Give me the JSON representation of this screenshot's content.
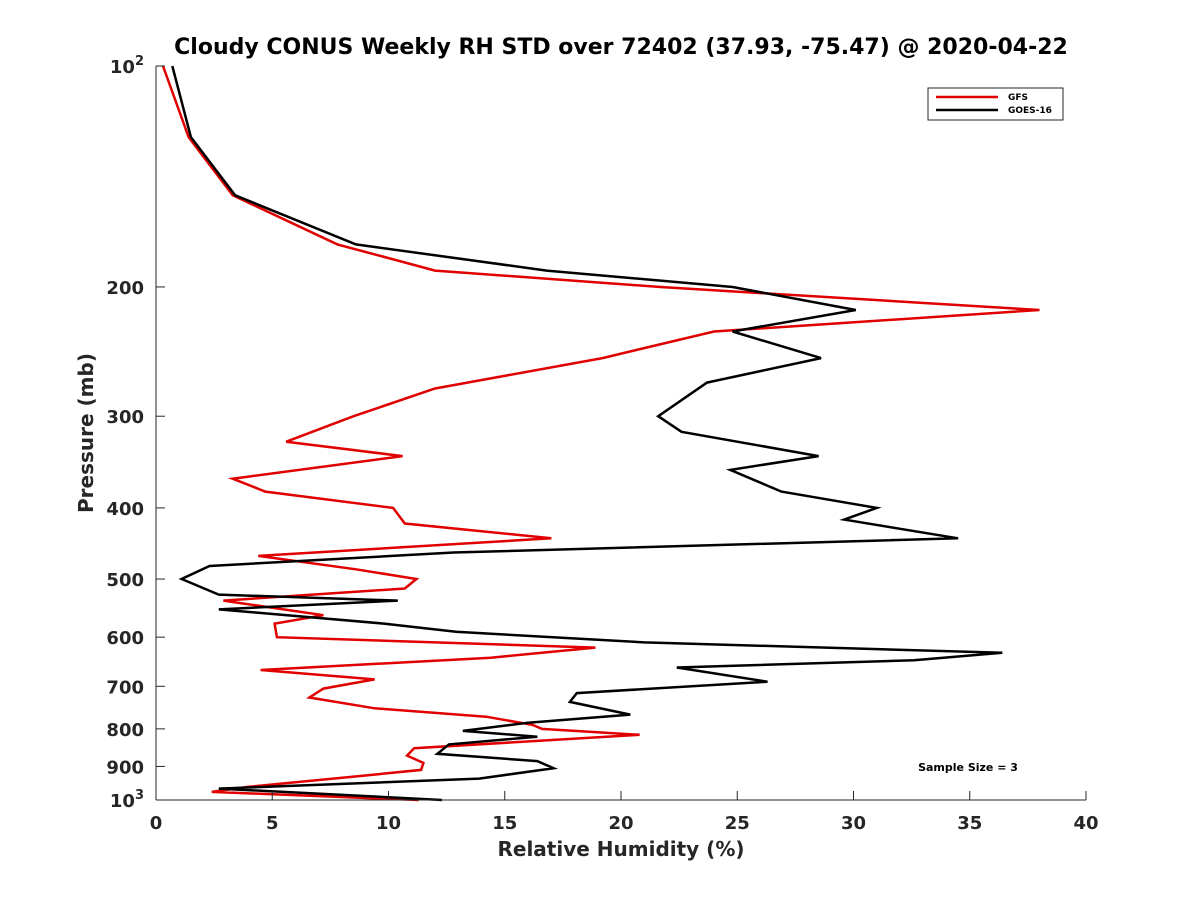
{
  "chart_data": {
    "type": "line",
    "title": "Cloudy CONUS Weekly RH STD over 72402 (37.93, -75.47) @ 2020-04-22",
    "xlabel": "Relative Humidity (%)",
    "ylabel": "Pressure (mb)",
    "xlim": [
      0,
      40
    ],
    "ylim": [
      100,
      1000
    ],
    "y_scale": "log",
    "y_reversed": true,
    "x_ticks": [
      0,
      5,
      10,
      15,
      20,
      25,
      30,
      35,
      40
    ],
    "y_ticks": [
      {
        "value": 100,
        "base": "10",
        "exp": "2"
      },
      {
        "value": 200,
        "label": "200"
      },
      {
        "value": 300,
        "label": "300"
      },
      {
        "value": 400,
        "label": "400"
      },
      {
        "value": 500,
        "label": "500"
      },
      {
        "value": 600,
        "label": "600"
      },
      {
        "value": 700,
        "label": "700"
      },
      {
        "value": 800,
        "label": "800"
      },
      {
        "value": 900,
        "label": "900"
      },
      {
        "value": 1000,
        "base": "10",
        "exp": "3"
      }
    ],
    "legend_position": "top-right",
    "annotation": "Sample Size = 3",
    "series": [
      {
        "name": "GFS",
        "color": "#e00000",
        "points": [
          [
            0.3,
            100
          ],
          [
            1.4,
            125
          ],
          [
            3.3,
            150
          ],
          [
            7.8,
            175
          ],
          [
            12,
            190
          ],
          [
            21.7,
            200
          ],
          [
            38,
            215
          ],
          [
            24,
            230
          ],
          [
            19.2,
            250
          ],
          [
            12,
            275
          ],
          [
            8.5,
            300
          ],
          [
            5.6,
            325
          ],
          [
            10.6,
            340
          ],
          [
            3.3,
            365
          ],
          [
            4.7,
            380
          ],
          [
            10.2,
            400
          ],
          [
            10.7,
            420
          ],
          [
            17,
            440
          ],
          [
            4.4,
            465
          ],
          [
            8.6,
            485
          ],
          [
            11.2,
            500
          ],
          [
            10.7,
            515
          ],
          [
            2.9,
            535
          ],
          [
            7.2,
            560
          ],
          [
            5.1,
            575
          ],
          [
            5.2,
            600
          ],
          [
            18.9,
            620
          ],
          [
            14.4,
            640
          ],
          [
            4.5,
            665
          ],
          [
            9.4,
            685
          ],
          [
            7.2,
            705
          ],
          [
            6.6,
            725
          ],
          [
            9.4,
            750
          ],
          [
            14.2,
            770
          ],
          [
            16.2,
            790
          ],
          [
            16.6,
            800
          ],
          [
            20.8,
            815
          ],
          [
            11.1,
            850
          ],
          [
            10.8,
            870
          ],
          [
            11.5,
            890
          ],
          [
            11.4,
            910
          ],
          [
            8.4,
            930
          ],
          [
            3.9,
            960
          ],
          [
            2.4,
            975
          ],
          [
            11.3,
            1000
          ]
        ]
      },
      {
        "name": "GOES-16",
        "color": "#000000",
        "points": [
          [
            0.7,
            100
          ],
          [
            1.5,
            125
          ],
          [
            3.4,
            150
          ],
          [
            8.6,
            175
          ],
          [
            16.8,
            190
          ],
          [
            24.8,
            200
          ],
          [
            30.1,
            215
          ],
          [
            24.8,
            230
          ],
          [
            28.6,
            250
          ],
          [
            23.7,
            270
          ],
          [
            21.6,
            300
          ],
          [
            22.6,
            315
          ],
          [
            28.5,
            340
          ],
          [
            24.7,
            355
          ],
          [
            26.9,
            380
          ],
          [
            31,
            400
          ],
          [
            29.6,
            415
          ],
          [
            34.5,
            440
          ],
          [
            12.8,
            460
          ],
          [
            2.3,
            480
          ],
          [
            1.1,
            500
          ],
          [
            2.7,
            525
          ],
          [
            10.4,
            535
          ],
          [
            2.7,
            550
          ],
          [
            9.8,
            575
          ],
          [
            12.9,
            590
          ],
          [
            21,
            610
          ],
          [
            36.4,
            630
          ],
          [
            32.6,
            645
          ],
          [
            22.4,
            660
          ],
          [
            26.3,
            690
          ],
          [
            18.1,
            715
          ],
          [
            17.8,
            735
          ],
          [
            20.4,
            765
          ],
          [
            16,
            785
          ],
          [
            13.2,
            805
          ],
          [
            16.4,
            820
          ],
          [
            12.6,
            840
          ],
          [
            12.1,
            865
          ],
          [
            16.4,
            885
          ],
          [
            17.1,
            905
          ],
          [
            13.9,
            935
          ],
          [
            2.7,
            965
          ],
          [
            12.3,
            1000
          ]
        ]
      }
    ]
  }
}
